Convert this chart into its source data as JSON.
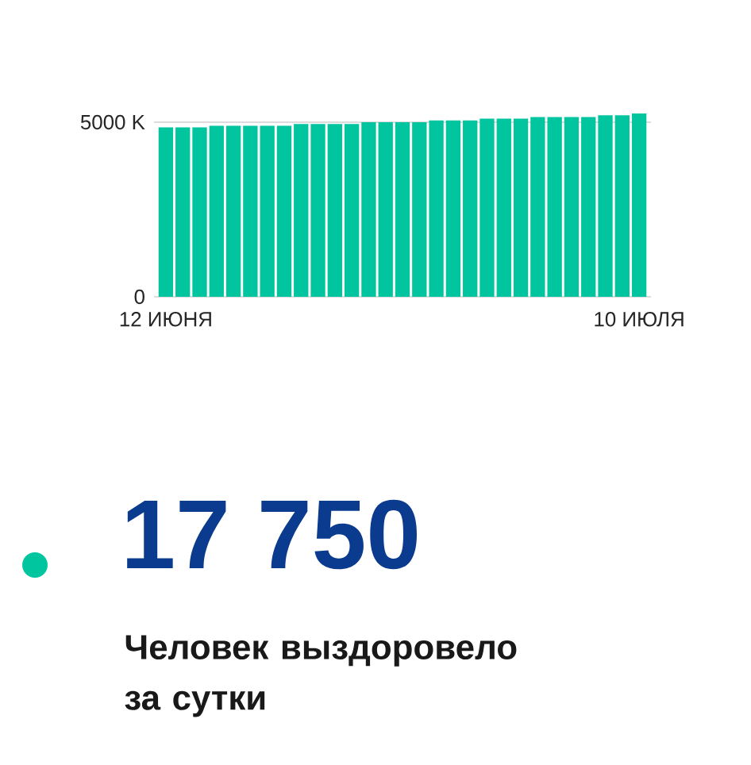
{
  "chart_data": [
    {
      "type": "bar",
      "categories": [
        "12 ИЮНЯ",
        null,
        null,
        null,
        null,
        null,
        null,
        null,
        null,
        null,
        null,
        null,
        null,
        null,
        null,
        null,
        null,
        null,
        null,
        null,
        null,
        null,
        null,
        null,
        null,
        null,
        null,
        null,
        "10 ИЮЛЯ"
      ],
      "values": [
        4850,
        4850,
        4850,
        4900,
        4900,
        4900,
        4900,
        4900,
        4950,
        4950,
        4950,
        4950,
        5000,
        5000,
        5000,
        5000,
        5050,
        5050,
        5050,
        5100,
        5100,
        5100,
        5150,
        5150,
        5150,
        5150,
        5200,
        5200,
        5250
      ],
      "color": "#00c59f",
      "ylim": [
        0,
        5250
      ],
      "yticks": [
        0,
        {
          "value": 5000,
          "label": "5000 K"
        }
      ],
      "grid": "y"
    },
    {
      "type": "other",
      "title": "17 750",
      "subtitle": "Человек выздоровело за сутки",
      "color": "#00c59f"
    }
  ]
}
